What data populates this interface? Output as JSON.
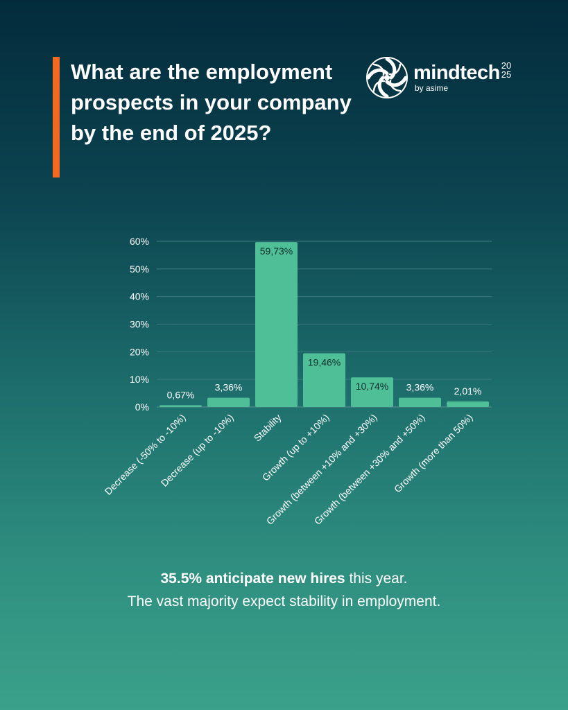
{
  "title": "What are the employment prospects in your company by the end of 2025?",
  "brand": {
    "name": "mindtech",
    "year_top": "20",
    "year_bottom": "25",
    "tagline": "by asime",
    "logo_icon": "globe-swirl-icon"
  },
  "colors": {
    "accent": "#f26a21",
    "bar": "#4fbf98",
    "background_top": "#032b3c",
    "background_bottom": "#3ba18a"
  },
  "chart_data": {
    "type": "bar",
    "categories": [
      "Decrease (-50% to -10%)",
      "Decrease (up to -10%)",
      "Stability",
      "Growth (up to +10%)",
      "Growth (between +10% and +30%)",
      "Growth (between +30% and +50%)",
      "Growth (more than 50%)"
    ],
    "values": [
      0.67,
      3.36,
      59.73,
      19.46,
      10.74,
      3.36,
      2.01
    ],
    "value_labels": [
      "0,67%",
      "3,36%",
      "59,73%",
      "19,46%",
      "10,74%",
      "3,36%",
      "2,01%"
    ],
    "ylim": [
      0,
      60
    ],
    "yticks": [
      "0%",
      "10%",
      "20%",
      "30%",
      "40%",
      "50%",
      "60%"
    ],
    "grid": true,
    "xlabel": "",
    "ylabel": ""
  },
  "summary": {
    "highlight": "35.5% anticipate new hires",
    "rest": " this year.",
    "line2": "The vast majority expect stability in employment."
  }
}
